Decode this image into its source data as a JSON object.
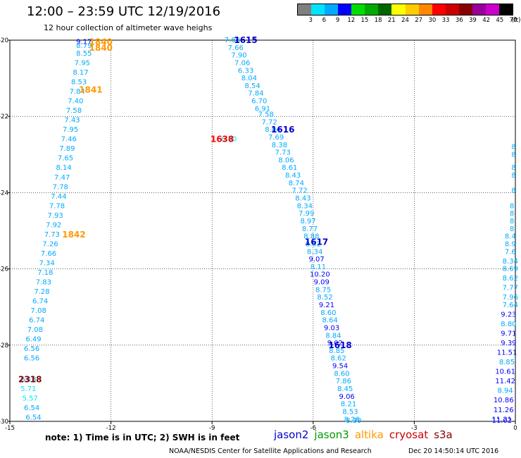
{
  "title": "12:00 – 23:59 UTC 12/19/2016",
  "subtitle": "12 hour collection of altimeter wave heighs",
  "colorbar": {
    "unit_label": "(ft)",
    "labels": [
      "3",
      "6",
      "9",
      "12",
      "15",
      "18",
      "21",
      "24",
      "27",
      "30",
      "33",
      "36",
      "39",
      "42",
      "45",
      "70"
    ],
    "colors": [
      "#7f7f7f",
      "#00e5ff",
      "#00aaff",
      "#0000ff",
      "#00dd00",
      "#00aa00",
      "#006600",
      "#ffff00",
      "#ffcc00",
      "#ff8800",
      "#ff0000",
      "#cc0000",
      "#880000",
      "#990099",
      "#cc00cc",
      "#000000"
    ]
  },
  "footnote": "note: 1) Time is in UTC; 2) SWH is in feet",
  "legend": [
    {
      "name": "jason2",
      "color": "#0000cc"
    },
    {
      "name": "jason3",
      "color": "#009900"
    },
    {
      "name": "altika",
      "color": "#ff9900"
    },
    {
      "name": "cryosat",
      "color": "#cc0000"
    },
    {
      "name": "s3a",
      "color": "#880000"
    }
  ],
  "credit": "NOAA/NESDIS Center for Satellite Applications and Research",
  "timestamp": "Dec 20 14:50:14 UTC 2016",
  "chart_data": {
    "type": "scatter",
    "xlim": [
      -15,
      0
    ],
    "ylim": [
      -30,
      -20
    ],
    "xticks": [
      "-15",
      "-12",
      "-9",
      "-6",
      "-3",
      "0"
    ],
    "yticks": [
      "-20",
      "-22",
      "-24",
      "-26",
      "-28",
      "-30"
    ],
    "grid": true,
    "color_scale": {
      "3": "#7f7f7f",
      "6": "#00e5ff",
      "9": "#00aaff",
      "12": "#0000ff",
      "15": "#00dd00",
      "18": "#00aa00",
      "21": "#006600",
      "24": "#ffff00",
      "27": "#ffcc00",
      "30": "#ff8800",
      "33": "#ff0000",
      "36": "#cc0000",
      "39": "#880000",
      "42": "#990099",
      "45": "#cc00cc",
      "70": "#000000"
    },
    "pass_labels": [
      {
        "x": -12.3,
        "y": -20.05,
        "label": "1840",
        "color": "#ff9900"
      },
      {
        "x": -12.3,
        "y": -20.2,
        "label": "1840",
        "color": "#ff9900"
      },
      {
        "x": -12.6,
        "y": -21.3,
        "label": "1841",
        "color": "#ff9900"
      },
      {
        "x": -13.1,
        "y": -25.1,
        "label": "1842",
        "color": "#ff9900"
      },
      {
        "x": -14.4,
        "y": -28.9,
        "label": "2318",
        "color": "#880000"
      },
      {
        "x": -8.0,
        "y": -20.0,
        "label": "1615",
        "color": "#0000cc"
      },
      {
        "x": -6.9,
        "y": -22.35,
        "label": "1616",
        "color": "#0000cc"
      },
      {
        "x": -8.7,
        "y": -22.6,
        "label": "1638",
        "color": "#ff0000"
      },
      {
        "x": -5.9,
        "y": -25.3,
        "label": "1617",
        "color": "#0000cc"
      },
      {
        "x": -5.2,
        "y": -28.0,
        "label": "1618",
        "color": "#0000cc"
      }
    ],
    "tracks": [
      {
        "points": [
          {
            "x": -12.8,
            "y": -20.05,
            "v": "9.17"
          },
          {
            "x": -12.8,
            "y": -20.15,
            "v": "8.79"
          },
          {
            "x": -12.8,
            "y": -20.35,
            "v": "8.55"
          },
          {
            "x": -12.85,
            "y": -20.6,
            "v": "7.95"
          },
          {
            "x": -12.9,
            "y": -20.85,
            "v": "8.17"
          },
          {
            "x": -12.95,
            "y": -21.1,
            "v": "8.53"
          },
          {
            "x": -13.0,
            "y": -21.35,
            "v": "7.84"
          },
          {
            "x": -13.05,
            "y": -21.6,
            "v": "7.40"
          },
          {
            "x": -13.1,
            "y": -21.85,
            "v": "7.58"
          },
          {
            "x": -13.15,
            "y": -22.1,
            "v": "7.43"
          },
          {
            "x": -13.2,
            "y": -22.35,
            "v": "7.95"
          },
          {
            "x": -13.25,
            "y": -22.6,
            "v": "7.46"
          },
          {
            "x": -13.3,
            "y": -22.85,
            "v": "7.89"
          },
          {
            "x": -13.35,
            "y": -23.1,
            "v": "7.65"
          },
          {
            "x": -13.4,
            "y": -23.35,
            "v": "8.14"
          },
          {
            "x": -13.45,
            "y": -23.6,
            "v": "7.47"
          },
          {
            "x": -13.5,
            "y": -23.85,
            "v": "7.78"
          },
          {
            "x": -13.55,
            "y": -24.1,
            "v": "7.44"
          },
          {
            "x": -13.6,
            "y": -24.35,
            "v": "7.78"
          },
          {
            "x": -13.65,
            "y": -24.6,
            "v": "7.93"
          },
          {
            "x": -13.7,
            "y": -24.85,
            "v": "7.92"
          },
          {
            "x": -13.75,
            "y": -25.1,
            "v": "7.73"
          },
          {
            "x": -13.8,
            "y": -25.35,
            "v": "7.26"
          },
          {
            "x": -13.85,
            "y": -25.6,
            "v": "7.66"
          },
          {
            "x": -13.9,
            "y": -25.85,
            "v": "7.34"
          },
          {
            "x": -13.95,
            "y": -26.1,
            "v": "7.18"
          },
          {
            "x": -14.0,
            "y": -26.35,
            "v": "7.83"
          },
          {
            "x": -14.05,
            "y": -26.6,
            "v": "7.28"
          },
          {
            "x": -14.1,
            "y": -26.85,
            "v": "6.74"
          },
          {
            "x": -14.15,
            "y": -27.1,
            "v": "7.08"
          },
          {
            "x": -14.2,
            "y": -27.35,
            "v": "6.74"
          },
          {
            "x": -14.25,
            "y": -27.6,
            "v": "7.08"
          },
          {
            "x": -14.3,
            "y": -27.85,
            "v": "6.49"
          },
          {
            "x": -14.35,
            "y": -28.1,
            "v": "6.56"
          },
          {
            "x": -14.35,
            "y": -28.35,
            "v": "6.56"
          },
          {
            "x": -14.45,
            "y": -28.9,
            "v": "6.18"
          },
          {
            "x": -14.45,
            "y": -29.15,
            "v": "5.71"
          },
          {
            "x": -14.4,
            "y": -29.4,
            "v": "5.57"
          },
          {
            "x": -14.35,
            "y": -29.65,
            "v": "6.54"
          },
          {
            "x": -14.3,
            "y": -29.9,
            "v": "6.54"
          }
        ]
      },
      {
        "points": [
          {
            "x": -8.4,
            "y": -20.0,
            "v": "7.83"
          },
          {
            "x": -8.3,
            "y": -20.2,
            "v": "7.66"
          },
          {
            "x": -8.2,
            "y": -20.4,
            "v": "7.90"
          },
          {
            "x": -8.1,
            "y": -20.6,
            "v": "7.06"
          },
          {
            "x": -8.0,
            "y": -20.8,
            "v": "6.33"
          },
          {
            "x": -7.9,
            "y": -21.0,
            "v": "8.04"
          },
          {
            "x": -7.8,
            "y": -21.2,
            "v": "8.54"
          },
          {
            "x": -7.7,
            "y": -21.4,
            "v": "7.84"
          },
          {
            "x": -7.6,
            "y": -21.6,
            "v": "6.70"
          },
          {
            "x": -7.5,
            "y": -21.8,
            "v": "6.91"
          },
          {
            "x": -7.4,
            "y": -21.95,
            "v": "7.58"
          },
          {
            "x": -7.3,
            "y": -22.15,
            "v": "7.72"
          },
          {
            "x": -7.2,
            "y": -22.35,
            "v": "8.04"
          },
          {
            "x": -7.1,
            "y": -22.55,
            "v": "7.69"
          },
          {
            "x": -7.0,
            "y": -22.75,
            "v": "8.38"
          },
          {
            "x": -6.9,
            "y": -22.95,
            "v": "7.73"
          },
          {
            "x": -6.8,
            "y": -23.15,
            "v": "8.06"
          },
          {
            "x": -6.7,
            "y": -23.35,
            "v": "8.61"
          },
          {
            "x": -6.6,
            "y": -23.55,
            "v": "8.43"
          },
          {
            "x": -6.5,
            "y": -23.75,
            "v": "8.74"
          },
          {
            "x": -6.4,
            "y": -23.95,
            "v": "7.72"
          },
          {
            "x": -6.3,
            "y": -24.15,
            "v": "8.43"
          },
          {
            "x": -6.25,
            "y": -24.35,
            "v": "8.34"
          },
          {
            "x": -6.2,
            "y": -24.55,
            "v": "7.99"
          },
          {
            "x": -6.15,
            "y": -24.75,
            "v": "8.97"
          },
          {
            "x": -6.1,
            "y": -24.95,
            "v": "8.77"
          },
          {
            "x": -6.05,
            "y": -25.15,
            "v": "8.88"
          },
          {
            "x": -6.0,
            "y": -25.35,
            "v": "8.52"
          },
          {
            "x": -5.95,
            "y": -25.55,
            "v": "8.34"
          },
          {
            "x": -5.9,
            "y": -25.75,
            "v": "9.07"
          },
          {
            "x": -5.85,
            "y": -25.95,
            "v": "8.11"
          },
          {
            "x": -5.8,
            "y": -26.15,
            "v": "10.20"
          },
          {
            "x": -5.75,
            "y": -26.35,
            "v": "9.09"
          },
          {
            "x": -5.7,
            "y": -26.55,
            "v": "8.75"
          },
          {
            "x": -5.65,
            "y": -26.75,
            "v": "8.52"
          },
          {
            "x": -5.6,
            "y": -26.95,
            "v": "9.21"
          },
          {
            "x": -5.55,
            "y": -27.15,
            "v": "8.60"
          },
          {
            "x": -5.5,
            "y": -27.35,
            "v": "8.64"
          },
          {
            "x": -5.45,
            "y": -27.55,
            "v": "9.03"
          },
          {
            "x": -5.4,
            "y": -27.75,
            "v": "8.84"
          },
          {
            "x": -5.35,
            "y": -27.95,
            "v": "9.02"
          },
          {
            "x": -5.3,
            "y": -28.15,
            "v": "8.85"
          },
          {
            "x": -5.25,
            "y": -28.35,
            "v": "8.62"
          },
          {
            "x": -5.2,
            "y": -28.55,
            "v": "9.54"
          },
          {
            "x": -5.15,
            "y": -28.75,
            "v": "8.60"
          },
          {
            "x": -5.1,
            "y": -28.95,
            "v": "7.86"
          },
          {
            "x": -5.05,
            "y": -29.15,
            "v": "8.45"
          },
          {
            "x": -5.0,
            "y": -29.35,
            "v": "9.06"
          },
          {
            "x": -4.95,
            "y": -29.55,
            "v": "8.21"
          },
          {
            "x": -4.9,
            "y": -29.75,
            "v": "8.53"
          },
          {
            "x": -4.85,
            "y": -29.95,
            "v": "8.26"
          },
          {
            "x": -4.8,
            "y": -30.15,
            "v": "8.30"
          }
        ]
      },
      {
        "points": [
          {
            "x": -8.5,
            "y": -22.6,
            "v": "6.00"
          }
        ]
      },
      {
        "points": [
          {
            "x": -0.05,
            "y": -22.8,
            "v": "8"
          },
          {
            "x": -0.05,
            "y": -23.0,
            "v": "8"
          },
          {
            "x": -0.05,
            "y": -23.35,
            "v": "8"
          },
          {
            "x": -0.05,
            "y": -23.55,
            "v": "8"
          },
          {
            "x": -0.05,
            "y": -23.95,
            "v": "8"
          },
          {
            "x": -0.1,
            "y": -24.35,
            "v": "8"
          },
          {
            "x": -0.1,
            "y": -24.55,
            "v": "8"
          },
          {
            "x": -0.1,
            "y": -24.75,
            "v": "8"
          },
          {
            "x": -0.1,
            "y": -24.95,
            "v": "8"
          },
          {
            "x": -0.15,
            "y": -25.15,
            "v": "8.4"
          },
          {
            "x": -0.15,
            "y": -25.35,
            "v": "8.9"
          },
          {
            "x": -0.15,
            "y": -25.55,
            "v": "7.6"
          },
          {
            "x": -0.15,
            "y": -25.8,
            "v": "8.34"
          },
          {
            "x": -0.15,
            "y": -26.0,
            "v": "8.69"
          },
          {
            "x": -0.15,
            "y": -26.25,
            "v": "8.62"
          },
          {
            "x": -0.15,
            "y": -26.5,
            "v": "7.77"
          },
          {
            "x": -0.15,
            "y": -26.75,
            "v": "7.96"
          },
          {
            "x": -0.15,
            "y": -26.95,
            "v": "7.64"
          },
          {
            "x": -0.2,
            "y": -27.2,
            "v": "9.23"
          },
          {
            "x": -0.2,
            "y": -27.45,
            "v": "8.80"
          },
          {
            "x": -0.2,
            "y": -27.7,
            "v": "9.71"
          },
          {
            "x": -0.2,
            "y": -27.95,
            "v": "9.39"
          },
          {
            "x": -0.25,
            "y": -28.2,
            "v": "11.51"
          },
          {
            "x": -0.25,
            "y": -28.45,
            "v": "8.85"
          },
          {
            "x": -0.3,
            "y": -28.7,
            "v": "10.61"
          },
          {
            "x": -0.3,
            "y": -28.95,
            "v": "11.42"
          },
          {
            "x": -0.3,
            "y": -29.2,
            "v": "8.94"
          },
          {
            "x": -0.35,
            "y": -29.45,
            "v": "10.86"
          },
          {
            "x": -0.35,
            "y": -29.7,
            "v": "11.26"
          },
          {
            "x": -0.4,
            "y": -29.95,
            "v": "11.21"
          },
          {
            "x": -0.4,
            "y": -30.2,
            "v": "11.02"
          }
        ]
      }
    ]
  }
}
